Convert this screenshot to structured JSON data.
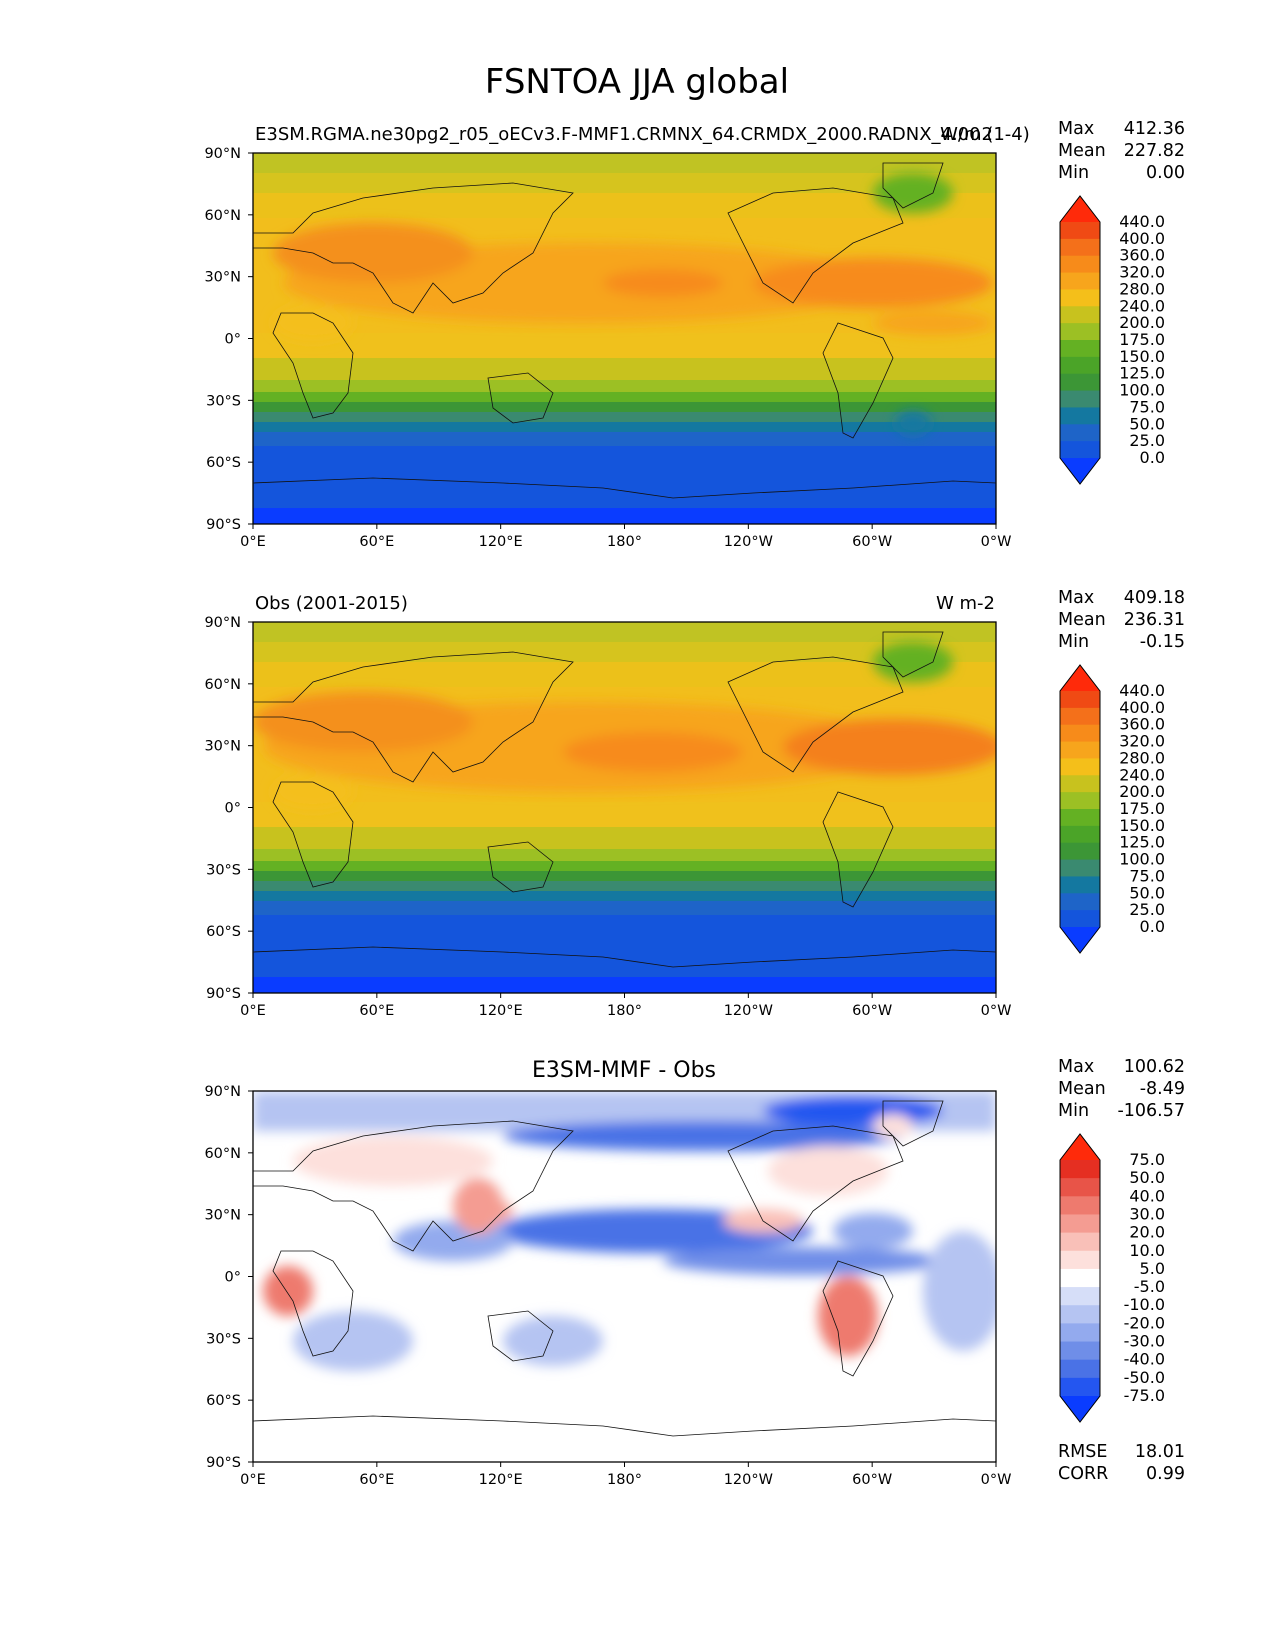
{
  "figure": {
    "title": "FSNTOA JJA global"
  },
  "panels": [
    {
      "id": "model",
      "title_left": "E3SM.RGMA.ne30pg2_r05_oECv3.F-MMF1.CRMNX_64.CRMDX_2000.RADNX_4.00 (1-4)",
      "units": "W/m2",
      "stats": {
        "max": "412.36",
        "mean": "227.82",
        "min": "0.00"
      },
      "colorbar_levels": [
        "0.0",
        "25.0",
        "50.0",
        "75.0",
        "100.0",
        "125.0",
        "150.0",
        "175.0",
        "200.0",
        "240.0",
        "280.0",
        "320.0",
        "360.0",
        "400.0",
        "440.0"
      ],
      "colors": [
        "#0a3cff",
        "#1455dc",
        "#1e64c8",
        "#1478a0",
        "#3a8a70",
        "#3c9636",
        "#4ba428",
        "#64b123",
        "#9cc024",
        "#c8c21e",
        "#f4bf1a",
        "#f7a51c",
        "#f78b1a",
        "#f4701a",
        "#f04a14",
        "#ff2a0a"
      ]
    },
    {
      "id": "obs",
      "title_left": "Obs (2001-2015)",
      "units": "W m-2",
      "stats": {
        "max": "409.18",
        "mean": "236.31",
        "min": "-0.15"
      },
      "colorbar_levels": [
        "0.0",
        "25.0",
        "50.0",
        "75.0",
        "100.0",
        "125.0",
        "150.0",
        "175.0",
        "200.0",
        "240.0",
        "280.0",
        "320.0",
        "360.0",
        "400.0",
        "440.0"
      ],
      "colors": [
        "#0a3cff",
        "#1455dc",
        "#1e64c8",
        "#1478a0",
        "#3a8a70",
        "#3c9636",
        "#4ba428",
        "#64b123",
        "#9cc024",
        "#c8c21e",
        "#f4bf1a",
        "#f7a51c",
        "#f78b1a",
        "#f4701a",
        "#f04a14",
        "#ff2a0a"
      ]
    },
    {
      "id": "diff",
      "title_center": "E3SM-MMF - Obs",
      "stats": {
        "max": "100.62",
        "mean": "-8.49",
        "min": "-106.57"
      },
      "colorbar_levels": [
        "-75.0",
        "-50.0",
        "-40.0",
        "-30.0",
        "-20.0",
        "-10.0",
        "-5.0",
        "5.0",
        "10.0",
        "20.0",
        "30.0",
        "40.0",
        "50.0",
        "75.0"
      ],
      "colors": [
        "#0a3cff",
        "#2456f0",
        "#4a72e6",
        "#6f8ee8",
        "#93aaee",
        "#b5c4f2",
        "#d6def8",
        "#ffffff",
        "#fde0dc",
        "#f9c0b8",
        "#f49c92",
        "#ee7a6e",
        "#e85448",
        "#e52f22",
        "#ff2a0a"
      ],
      "rmse": "18.01",
      "corr": "0.99"
    }
  ],
  "stat_labels": {
    "max": "Max",
    "mean": "Mean",
    "min": "Min",
    "rmse": "RMSE",
    "corr": "CORR"
  },
  "axes": {
    "lat_ticks": [
      "90°N",
      "60°N",
      "30°N",
      "0°",
      "30°S",
      "60°S",
      "90°S"
    ],
    "lon_ticks": [
      "0°E",
      "60°E",
      "120°E",
      "180°",
      "120°W",
      "60°W",
      "0°W"
    ]
  }
}
